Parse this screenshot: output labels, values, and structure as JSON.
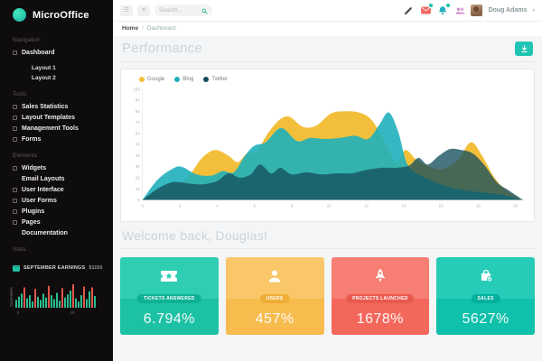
{
  "app": {
    "accent": "#1fc4b2"
  },
  "sidebar": {
    "logo_text": "MicroOffice",
    "sections": [
      {
        "label": "Navigation",
        "items": [
          {
            "label": "Dashboard",
            "icon": true,
            "children": [
              "Layout 1",
              "Layout 2"
            ]
          }
        ]
      },
      {
        "label": "Tools",
        "items": [
          {
            "label": "Sales Statistics",
            "icon": true
          },
          {
            "label": "Layout Templates",
            "icon": true
          },
          {
            "label": "Management Tools",
            "icon": true
          },
          {
            "label": "Forms",
            "icon": true
          }
        ]
      },
      {
        "label": "Elements",
        "items": [
          {
            "label": "Widgets",
            "icon": true
          },
          {
            "label": "Email Layouts",
            "icon": false
          },
          {
            "label": "User Interface",
            "icon": true
          },
          {
            "label": "User Forms",
            "icon": true
          },
          {
            "label": "Plugins",
            "icon": true
          },
          {
            "label": "Pages",
            "icon": true
          },
          {
            "label": "Documentation",
            "icon": false
          }
        ]
      }
    ],
    "stats": {
      "section_label": "Stats",
      "earnings_label": "SEPTEMBER EARNINGS",
      "earnings_value": "$1150",
      "mini_chart": {
        "type": "bar",
        "ylabel": "September",
        "colors": {
          "primary": "#2abf91",
          "secondary": "#e2574c"
        },
        "bars": [
          {
            "v": 10
          },
          {
            "v": 14
          },
          {
            "v": 18
          },
          {
            "v": 26,
            "o": 1
          },
          {
            "v": 12
          },
          {
            "v": 16
          },
          {
            "v": 8
          },
          {
            "v": 24,
            "o": 1
          },
          {
            "v": 14
          },
          {
            "v": 10
          },
          {
            "v": 18
          },
          {
            "v": 13
          },
          {
            "v": 28,
            "o": 1
          },
          {
            "v": 16
          },
          {
            "v": 11
          },
          {
            "v": 19
          },
          {
            "v": 9
          },
          {
            "v": 25,
            "o": 1
          },
          {
            "v": 13
          },
          {
            "v": 17
          },
          {
            "v": 22
          },
          {
            "v": 30,
            "o": 1
          },
          {
            "v": 12
          },
          {
            "v": 8
          },
          {
            "v": 16
          },
          {
            "v": 27,
            "o": 1
          },
          {
            "v": 11
          },
          {
            "v": 21
          },
          {
            "v": 26,
            "o": 1
          },
          {
            "v": 15
          }
        ],
        "xticks": [
          {
            "label": "0",
            "index": 1
          },
          {
            "label": "20",
            "index": 21
          }
        ]
      }
    }
  },
  "topbar": {
    "menu_button": "☰",
    "close_button": "✕",
    "search_placeholder": "Search...",
    "user_name": "Doug Adams",
    "chevron": "▾",
    "badge_color": "#1fc4a9",
    "icons": [
      {
        "name": "pencil-icon",
        "color": "#4b4b4b",
        "badge": false
      },
      {
        "name": "mail-icon",
        "color": "#f0695f",
        "badge": true
      },
      {
        "name": "bell-icon",
        "color": "#27afc0",
        "badge": true
      },
      {
        "name": "users-icon",
        "color": "#cf8fcb",
        "badge": false
      }
    ]
  },
  "breadcrumb": {
    "home": "Home",
    "sep": "/",
    "current": "Dashboard"
  },
  "page": {
    "title": "Performance",
    "welcome": "Welcome back, Douglas!"
  },
  "chart_data": {
    "type": "area",
    "title": "Performance",
    "xlabel": "",
    "ylabel": "",
    "xlim": [
      0,
      20.5
    ],
    "ylim": [
      0,
      100
    ],
    "xticks": [
      0,
      2,
      4,
      6,
      8,
      10,
      12,
      14,
      16,
      18,
      20
    ],
    "yticks": [
      0,
      10,
      20,
      30,
      40,
      50,
      60,
      70,
      80,
      90,
      100
    ],
    "grid": false,
    "legend_position": "top-left",
    "series": [
      {
        "name": "Google",
        "color": "#f3bf3a",
        "opacity": 1,
        "points": [
          [
            0,
            0
          ],
          [
            0.8,
            8
          ],
          [
            1.6,
            13
          ],
          [
            2.4,
            20
          ],
          [
            3.2,
            38
          ],
          [
            3.9,
            45
          ],
          [
            4.6,
            40
          ],
          [
            5.1,
            34
          ],
          [
            5.6,
            42
          ],
          [
            6.1,
            44
          ],
          [
            6.8,
            62
          ],
          [
            7.4,
            73
          ],
          [
            7.9,
            75
          ],
          [
            8.6,
            66
          ],
          [
            9.3,
            67
          ],
          [
            10.1,
            78
          ],
          [
            10.8,
            80
          ],
          [
            11.6,
            79
          ],
          [
            12.3,
            72
          ],
          [
            13,
            52
          ],
          [
            13.6,
            34
          ],
          [
            14.1,
            45
          ],
          [
            14.7,
            36
          ],
          [
            15.4,
            30
          ],
          [
            16.1,
            28
          ],
          [
            16.9,
            36
          ],
          [
            17.6,
            52
          ],
          [
            18.2,
            40
          ],
          [
            18.8,
            22
          ],
          [
            19.4,
            10
          ],
          [
            20.3,
            0
          ]
        ]
      },
      {
        "name": "Bing",
        "color": "#1fb0bb",
        "opacity": 0.9,
        "points": [
          [
            0,
            0
          ],
          [
            0.8,
            18
          ],
          [
            1.6,
            28
          ],
          [
            2.1,
            30
          ],
          [
            2.9,
            23
          ],
          [
            3.7,
            22
          ],
          [
            4.3,
            26
          ],
          [
            4.9,
            25
          ],
          [
            5.5,
            40
          ],
          [
            6,
            49
          ],
          [
            6.6,
            52
          ],
          [
            7.2,
            63
          ],
          [
            7.6,
            64
          ],
          [
            8.3,
            53
          ],
          [
            9,
            56
          ],
          [
            9.8,
            55
          ],
          [
            10.6,
            56
          ],
          [
            11.4,
            58
          ],
          [
            12.1,
            55
          ],
          [
            12.7,
            68
          ],
          [
            13.2,
            79
          ],
          [
            13.7,
            62
          ],
          [
            14.2,
            32
          ],
          [
            14.9,
            22
          ],
          [
            15.7,
            16
          ],
          [
            16.6,
            11
          ],
          [
            17.6,
            8
          ],
          [
            18.6,
            6
          ],
          [
            19.5,
            4
          ],
          [
            20.3,
            0
          ]
        ]
      },
      {
        "name": "Twitter",
        "color": "#14505c",
        "opacity": 0.78,
        "points": [
          [
            0,
            0
          ],
          [
            0.8,
            10
          ],
          [
            1.6,
            16
          ],
          [
            2.4,
            15
          ],
          [
            3.2,
            14
          ],
          [
            4,
            17
          ],
          [
            4.6,
            24
          ],
          [
            5.2,
            20
          ],
          [
            5.8,
            23
          ],
          [
            6.3,
            32
          ],
          [
            6.9,
            24
          ],
          [
            7.4,
            29
          ],
          [
            8,
            23
          ],
          [
            8.8,
            25
          ],
          [
            9.6,
            23
          ],
          [
            10.4,
            24
          ],
          [
            11.2,
            24
          ],
          [
            12,
            27
          ],
          [
            12.8,
            29
          ],
          [
            13.6,
            29
          ],
          [
            14.3,
            31
          ],
          [
            14.8,
            38
          ],
          [
            15.3,
            32
          ],
          [
            15.9,
            40
          ],
          [
            16.5,
            46
          ],
          [
            17.1,
            45
          ],
          [
            17.7,
            42
          ],
          [
            18.3,
            32
          ],
          [
            19,
            16
          ],
          [
            19.6,
            9
          ],
          [
            20.4,
            0
          ]
        ]
      }
    ]
  },
  "cards": [
    {
      "label": "TICKETS ANSWERED",
      "value": "6.794%",
      "icon": "ticket-icon",
      "base": "#1dc1a4",
      "top": "#2fcdb2",
      "pill": "#0fb195"
    },
    {
      "label": "USERS",
      "value": "457%",
      "icon": "user-icon",
      "base": "#f7bb4e",
      "top": "#f9c768",
      "pill": "#efae38"
    },
    {
      "label": "PROJECTS LAUNCHED",
      "value": "1678%",
      "icon": "rocket-icon",
      "base": "#f4685c",
      "top": "#f67e73",
      "pill": "#e95a4e"
    },
    {
      "label": "SALES",
      "value": "5627%",
      "icon": "bag-icon",
      "base": "#0fc0aa",
      "top": "#27ccb8",
      "pill": "#02b09c"
    }
  ]
}
